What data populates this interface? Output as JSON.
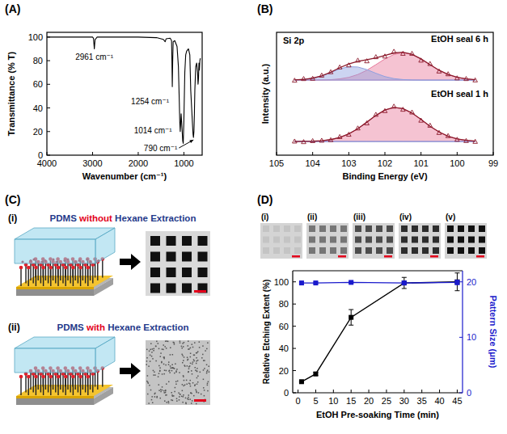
{
  "chart_data": [
    {
      "panel_label": "(A)",
      "type": "line",
      "x": [
        4000,
        3500,
        3000,
        2980,
        2961,
        2945,
        2920,
        2900,
        2500,
        2000,
        1600,
        1450,
        1410,
        1390,
        1300,
        1270,
        1262,
        1254,
        1246,
        1235,
        1200,
        1150,
        1120,
        1100,
        1090,
        1080,
        1060,
        1040,
        1025,
        1014,
        1000,
        980,
        960,
        940,
        900,
        870,
        860,
        850,
        830,
        810,
        800,
        790,
        780,
        770,
        760,
        740,
        720,
        700,
        690,
        680,
        670,
        660,
        650,
        640
      ],
      "values": [
        100,
        100,
        100,
        99,
        90,
        98,
        99,
        100,
        100,
        100,
        99.5,
        98,
        96,
        98.5,
        99,
        97,
        80,
        58,
        78,
        96,
        97,
        92,
        75,
        45,
        28,
        20,
        35,
        22,
        12,
        10,
        30,
        70,
        85,
        88,
        90,
        85,
        70,
        55,
        40,
        25,
        18,
        15,
        20,
        35,
        55,
        75,
        78,
        70,
        60,
        65,
        78,
        72,
        80,
        82
      ],
      "color": "#000000",
      "xlim": [
        4000,
        600
      ],
      "xticks": [
        4000,
        3000,
        2000,
        1000
      ],
      "ylim": [
        0,
        104
      ],
      "yticks": [
        0,
        20,
        40,
        60,
        80,
        100
      ],
      "x_label": "Wavenumber (cm⁻¹)",
      "y_label": "Transmittance (% T)",
      "annotations": [
        {
          "text": "2961 cm⁻¹",
          "x": 2961,
          "y": 90
        },
        {
          "text": "1254 cm⁻¹",
          "x": 1254,
          "y": 58
        },
        {
          "text": "1014 cm⁻¹",
          "x": 1014,
          "y": 10
        },
        {
          "text": "790 cm⁻¹",
          "x": 790,
          "y": 15
        }
      ]
    },
    {
      "panel_label": "(B)",
      "type": "line",
      "title": "Si 2p",
      "x": [
        104.5,
        104.25,
        104,
        103.75,
        103.5,
        103.25,
        103,
        102.75,
        102.5,
        102.25,
        102,
        101.75,
        101.5,
        101.25,
        101,
        100.75,
        100.5,
        100.25,
        100,
        99.75,
        99.5
      ],
      "xlim": [
        105,
        99
      ],
      "xticks": [
        105,
        104,
        103,
        102,
        101,
        100,
        99
      ],
      "ylim": [
        0,
        9
      ],
      "tick_labels": "x",
      "x_label": "Binding Energy (eV)",
      "y_label": "Intensity (a.u.)",
      "spectra": [
        {
          "label": "EtOH seal 6 h",
          "series": [
            {
              "type": "area",
              "color": "#e8799c",
              "values": [
                5.5,
                5.5,
                5.5,
                5.51,
                5.53,
                5.59,
                5.7,
                5.91,
                6.22,
                6.63,
                7.05,
                7.38,
                7.5,
                7.38,
                7.05,
                6.63,
                6.22,
                5.91,
                5.7,
                5.59,
                5.53
              ]
            },
            {
              "type": "area",
              "color": "#8fa0e0",
              "values": [
                5.51,
                5.55,
                5.64,
                5.8,
                6.05,
                6.32,
                6.48,
                6.46,
                6.27,
                6.0,
                5.76,
                5.61,
                5.54,
                5.51,
                5.5,
                5.5,
                5.5,
                5.5,
                5.5,
                5.5,
                5.5
              ]
            },
            {
              "type": "line",
              "color": "#8b1a2b",
              "line_style": "solid",
              "values": [
                5.51,
                5.55,
                5.64,
                5.81,
                6.08,
                6.41,
                6.68,
                6.87,
                6.99,
                7.13,
                7.31,
                7.49,
                7.54,
                7.39,
                7.05,
                6.63,
                6.22,
                5.91,
                5.7,
                5.59,
                5.53
              ]
            },
            {
              "type": "scatter",
              "color": "#8b1a2b",
              "marker": "triangle",
              "values": [
                5.48,
                5.6,
                5.62,
                5.85,
                6.1,
                6.45,
                6.6,
                6.95,
                6.9,
                7.2,
                7.25,
                7.6,
                7.45,
                7.45,
                6.95,
                6.7,
                6.15,
                5.95,
                5.65,
                5.6,
                5.5
              ]
            }
          ]
        },
        {
          "label": "EtOH seal 1 h",
          "series": [
            {
              "type": "area",
              "color": "#e8799c",
              "values": [
                1.0,
                1.01,
                1.02,
                1.06,
                1.14,
                1.3,
                1.56,
                1.94,
                2.42,
                2.91,
                3.31,
                3.5,
                3.41,
                3.09,
                2.62,
                2.12,
                1.7,
                1.39,
                1.19,
                1.09,
                1.03
              ]
            },
            {
              "type": "area",
              "color": "#8fa0e0",
              "values": [
                1.0,
                1.0,
                1.0,
                1.0,
                1.0,
                1.0,
                1.0,
                1.0,
                1.0,
                1.0,
                1.0,
                1.0,
                1.0,
                1.0,
                1.0,
                1.0,
                1.0,
                1.0,
                1.0,
                1.0,
                1.0
              ]
            },
            {
              "type": "line",
              "color": "#8b1a2b",
              "line_style": "solid",
              "values": [
                1.0,
                1.01,
                1.02,
                1.06,
                1.14,
                1.3,
                1.56,
                1.94,
                2.42,
                2.91,
                3.31,
                3.5,
                3.41,
                3.09,
                2.62,
                2.12,
                1.7,
                1.39,
                1.19,
                1.09,
                1.03
              ]
            },
            {
              "type": "scatter",
              "color": "#8b1a2b",
              "marker": "triangle",
              "values": [
                1.02,
                0.98,
                1.05,
                1.08,
                1.12,
                1.35,
                1.52,
                1.98,
                2.35,
                2.98,
                3.25,
                3.58,
                3.35,
                3.15,
                2.55,
                2.18,
                1.65,
                1.42,
                1.15,
                1.06,
                1.0
              ]
            }
          ]
        }
      ]
    },
    {
      "panel_label": "(D)",
      "type": "line",
      "images": [
        "(i)",
        "(ii)",
        "(iii)",
        "(iv)",
        "(v)"
      ],
      "x": [
        1,
        5,
        15,
        30,
        45
      ],
      "series": [
        {
          "color": "#000000",
          "marker": "square",
          "line_style": "solid",
          "values": [
            10,
            17,
            68,
            99,
            100
          ],
          "errors": [
            0.5,
            1.5,
            7,
            5,
            8
          ]
        },
        {
          "color": "#1a1acc",
          "marker": "square",
          "line_style": "solid",
          "axis": "y2",
          "values": [
            19.8,
            19.8,
            19.9,
            19.8,
            19.9
          ],
          "errors": [
            0.15,
            0.15,
            0.15,
            0.3,
            0.4
          ]
        }
      ],
      "xlim": [
        -1.5,
        46.5
      ],
      "xticks": [
        0,
        5,
        10,
        15,
        20,
        25,
        30,
        35,
        40,
        45
      ],
      "ylim": [
        0,
        110
      ],
      "yticks": [
        0,
        20,
        40,
        60,
        80,
        100
      ],
      "y2lim": [
        0,
        22
      ],
      "y2ticks": [
        0,
        10,
        20
      ],
      "x_label": "EtOH Pre-soaking Time (min)",
      "y_label": "Relative Etching Extent (%)",
      "y2_label": "Pattern Size (μm)"
    }
  ],
  "diagram": {
    "panel_label": "(C)",
    "rows": [
      {
        "label": "(i)",
        "title_parts": [
          {
            "text": "PDMS "
          },
          {
            "text": "without",
            "color": "#e3001b"
          },
          {
            "text": " Hexane Extraction"
          }
        ]
      },
      {
        "label": "(ii)",
        "title_parts": [
          {
            "text": "PDMS "
          },
          {
            "text": "with",
            "color": "#e3001b"
          },
          {
            "text": " Hexane Extraction"
          }
        ]
      }
    ]
  }
}
